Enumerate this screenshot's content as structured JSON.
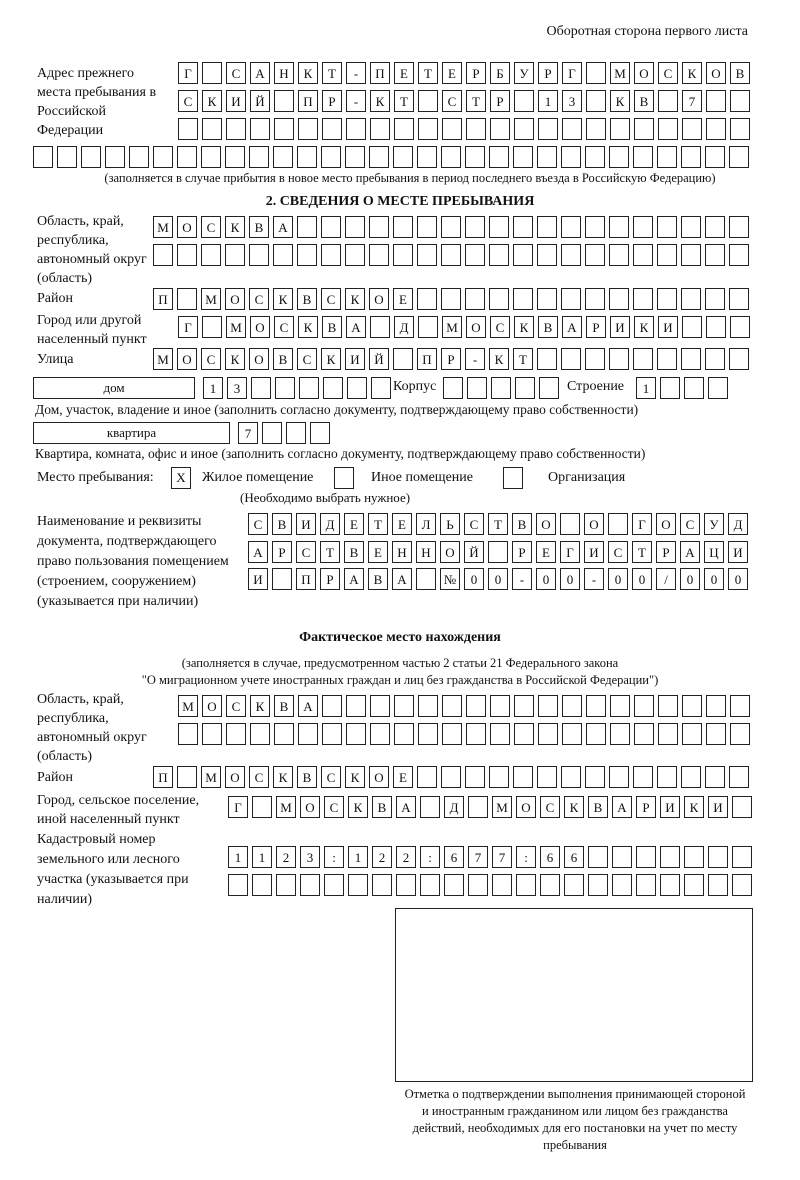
{
  "header": "Оборотная сторона первого листа",
  "prev_address": {
    "label": "Адрес прежнего места пребывания в Российской Федерации",
    "rows": [
      "Г САНКТ-ПЕТЕРБУРГ МОСКОВ",
      "СКИЙ ПР-КТ СТР 13 КВ 7  ",
      "                        ",
      "                              "
    ],
    "note": "(заполняется в случае прибытия в новое место пребывания в период последнего въезда в Российскую Федерацию)"
  },
  "section2": {
    "title": "2. СВЕДЕНИЯ О МЕСТЕ ПРЕБЫВАНИЯ",
    "region_label": "Область, край, республика, автономный округ (область)",
    "region_rows": [
      "МОСКВА                   ",
      "                         "
    ],
    "district_label": "Район",
    "district_row": "П МОСКВСКОЕ              ",
    "city_label": "Город или другой населенный пункт",
    "city_row": "Г МОСКВА Д МОСКВАРИКИ   ",
    "street_label": "Улица",
    "street_row": "МОСКОВСКИЙ ПР-КТ         ",
    "house_type": "дом",
    "house_row": "13      ",
    "korpus_label": "Корпус",
    "korpus_row": "     ",
    "stroenie_label": "Строение",
    "stroenie_row": "1   ",
    "house_note": "Дом, участок, владение и иное (заполнить согласно документу, подтверждающему право собственности)",
    "flat_type": "квартира",
    "flat_row": "7   ",
    "flat_note": "Квартира, комната, офис и иное (заполнить согласно документу, подтверждающему право собственности)",
    "place_label": "Место пребывания:",
    "place_options": [
      {
        "label": "Жилое помещение",
        "mark": "X"
      },
      {
        "label": "Иное помещение",
        "mark": ""
      },
      {
        "label": "Организация",
        "mark": ""
      }
    ],
    "place_note": "(Необходимо выбрать нужное)",
    "doc_label": "Наименование и реквизиты документа, подтверждающего право пользования помещением (строением, сооружением) (указывается при наличии)",
    "doc_rows": [
      "СВИДЕТЕЛЬСТВО О ГОСУД",
      "АРСТВЕННОЙ РЕГИСТРАЦИ",
      "И ПРАВА №00-00-00/000"
    ]
  },
  "actual": {
    "title": "Фактическое место нахождения",
    "note1": "(заполняется в случае, предусмотренном частью 2 статьи 21 Федерального закона",
    "note2": "\"О миграционном учете иностранных граждан и лиц без гражданства в Российской Федерации\")",
    "region_label": "Область, край, республика, автономный округ (область)",
    "region_rows": [
      "МОСКВА                  ",
      "                        "
    ],
    "district_label": "Район",
    "district_row": "П МОСКВСКОЕ              ",
    "city_label": "Город, сельское поселение, иной населенный пункт",
    "city_row": "Г МОСКВА Д МОСКВАРИКИ ",
    "cadastral_label": "Кадастровый номер земельного или лесного участка (указывается при наличии)",
    "cadastral_rows": [
      "1123:122:677:66       ",
      "                      "
    ]
  },
  "stamp_caption": "Отметка о подтверждении выполнения принимающей стороной и иностранным гражданином или лицом без гражданства действий, необходимых для его постановки на учет по месту пребывания"
}
